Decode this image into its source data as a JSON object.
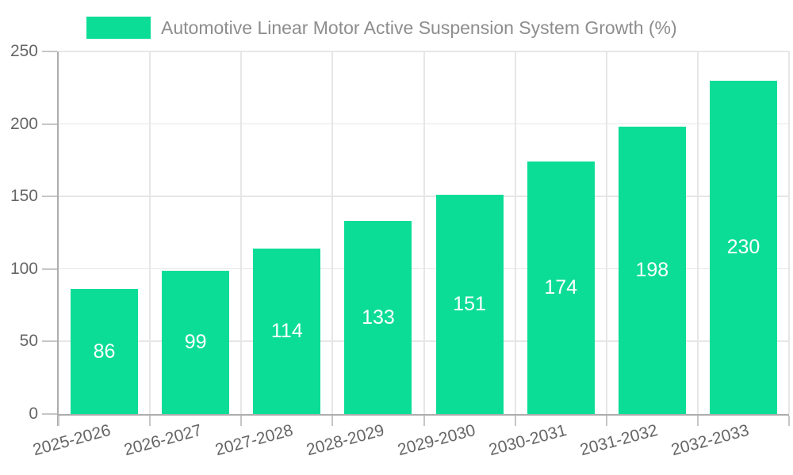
{
  "chart_data": {
    "type": "bar",
    "title": "Automotive Linear Motor Active Suspension System Growth (%)",
    "categories": [
      "2025-2026",
      "2026-2027",
      "2027-2028",
      "2028-2029",
      "2029-2030",
      "2030-2031",
      "2031-2032",
      "2032-2033"
    ],
    "values": [
      86,
      99,
      114,
      133,
      151,
      174,
      198,
      230
    ],
    "xlabel": "",
    "ylabel": "",
    "ylim": [
      0,
      250
    ],
    "yticks": [
      0,
      50,
      100,
      150,
      200,
      250
    ],
    "grid": true,
    "legend_position": "top",
    "value_labels": "inside-center",
    "colors": {
      "bar": "#0cdd96",
      "bar_value_text": "#ffffff",
      "axis_line": "#adadad",
      "grid_line": "#e6e6e6",
      "tick_mark": "#c6c6c6",
      "tick_text": "#666666",
      "legend_text": "#8d8d8d",
      "background": "#ffffff"
    }
  }
}
